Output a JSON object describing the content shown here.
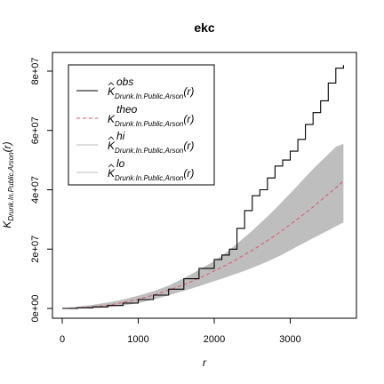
{
  "chart_data": {
    "type": "line",
    "title": "ekc",
    "xlabel": "r",
    "ylabel": {
      "base": "K",
      "subscript": "Drunk.In.Public,Arson",
      "suffix": "(r)"
    },
    "xlim": [
      0,
      3700
    ],
    "ylim": [
      0,
      84000000
    ],
    "x_ticks": [
      0,
      1000,
      2000,
      3000
    ],
    "x_tick_labels": [
      "0",
      "1000",
      "2000",
      "3000"
    ],
    "y_ticks": [
      0,
      20000000,
      40000000,
      60000000,
      80000000
    ],
    "y_tick_labels": [
      "0e+00",
      "2e+07",
      "4e+07",
      "6e+07",
      "8e+07"
    ],
    "grid": false,
    "legend_position": "top-left",
    "legend": [
      {
        "symbol": "K",
        "hat": true,
        "superscript": "obs",
        "subscript": "Drunk.In.Public,Arson",
        "suffix": "(r)",
        "color": "#000000",
        "dash": "solid"
      },
      {
        "symbol": "K",
        "hat": false,
        "superscript": "theo",
        "subscript": "Drunk.In.Public,Arson",
        "suffix": "(r)",
        "color": "#df536b",
        "dash": "dashed"
      },
      {
        "symbol": "K",
        "hat": true,
        "superscript": "hi",
        "subscript": "Drunk.In.Public,Arson",
        "suffix": "(r)",
        "color": "#bebebe",
        "dash": "solid"
      },
      {
        "symbol": "K",
        "hat": true,
        "superscript": "lo",
        "subscript": "Drunk.In.Public,Arson",
        "suffix": "(r)",
        "color": "#bebebe",
        "dash": "solid"
      }
    ],
    "x": [
      0,
      200,
      400,
      600,
      800,
      1000,
      1200,
      1400,
      1600,
      1800,
      2000,
      2100,
      2200,
      2300,
      2400,
      2500,
      2600,
      2700,
      2800,
      2900,
      3000,
      3100,
      3200,
      3300,
      3400,
      3500,
      3600,
      3700
    ],
    "series": [
      {
        "key": "obs",
        "values": [
          0,
          200000,
          500000,
          1000000,
          1800000,
          3000000,
          4500000,
          6500000,
          10000000,
          13500000,
          16500000,
          18000000,
          20000000,
          27000000,
          33000000,
          38000000,
          40000000,
          44000000,
          48000000,
          50000000,
          53000000,
          57000000,
          62000000,
          66000000,
          70000000,
          76000000,
          81000000,
          82000000
        ]
      },
      {
        "key": "theo",
        "values": [
          0,
          125000,
          500000,
          1100000,
          2000000,
          3100000,
          4500000,
          6200000,
          8000000,
          10200000,
          12600000,
          13900000,
          15200000,
          16600000,
          18100000,
          19600000,
          21200000,
          22900000,
          24600000,
          26400000,
          28300000,
          30200000,
          32200000,
          34200000,
          36300000,
          38500000,
          40700000,
          43000000
        ]
      },
      {
        "key": "hi",
        "values": [
          0,
          600000,
          1200000,
          2000000,
          3000000,
          4300000,
          5800000,
          7700000,
          10200000,
          13000000,
          16000000,
          17800000,
          19700000,
          21800000,
          24000000,
          26200000,
          28600000,
          31000000,
          33500000,
          36200000,
          38800000,
          41500000,
          44300000,
          47000000,
          49500000,
          52000000,
          54500000,
          55500000
        ]
      },
      {
        "key": "lo",
        "values": [
          0,
          0,
          100000,
          400000,
          1000000,
          1800000,
          3000000,
          4400000,
          5900000,
          7500000,
          9200000,
          10000000,
          10900000,
          11800000,
          12700000,
          13700000,
          14700000,
          15800000,
          17000000,
          18200000,
          19600000,
          21000000,
          22300000,
          23700000,
          25000000,
          26300000,
          27700000,
          29000000
        ]
      }
    ]
  }
}
